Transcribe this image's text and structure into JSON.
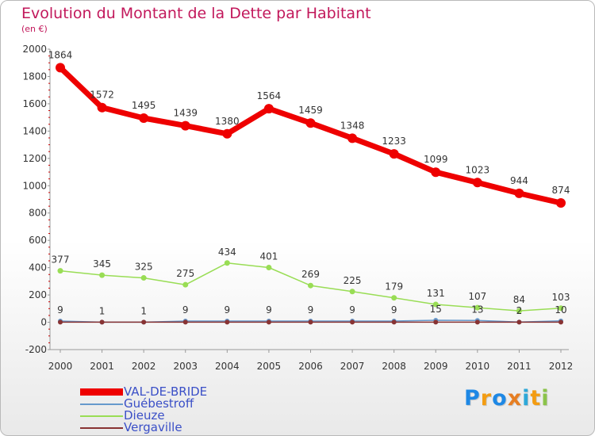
{
  "header": {
    "title": "Evolution du Montant de la Dette par Habitant",
    "subtitle": "(en €)"
  },
  "chart_data": {
    "type": "line",
    "title": "Evolution du Montant de la Dette par Habitant",
    "subtitle": "(en €)",
    "xlabel": "",
    "ylabel": "",
    "x": [
      "2000",
      "2001",
      "2002",
      "2003",
      "2004",
      "2005",
      "2006",
      "2007",
      "2008",
      "2009",
      "2010",
      "2011",
      "2012"
    ],
    "ylim": [
      -200,
      2000
    ],
    "yticks": [
      -200,
      0,
      200,
      400,
      600,
      800,
      1000,
      1200,
      1400,
      1600,
      1800,
      2000
    ],
    "grid": false,
    "legend_position": "bottom-left",
    "series": [
      {
        "name": "VAL-DE-BRIDE",
        "color": "#ee0000",
        "values": [
          1864,
          1572,
          1495,
          1439,
          1380,
          1564,
          1459,
          1348,
          1233,
          1099,
          1023,
          944,
          874
        ],
        "labels": [
          "1864",
          "1572",
          "1495",
          "1439",
          "1380",
          "1564",
          "1459",
          "1348",
          "1233",
          "1099",
          "1023",
          "944",
          "874"
        ]
      },
      {
        "name": "Guébestroff",
        "color": "#6699cc",
        "values": [
          9,
          1,
          1,
          9,
          9,
          9,
          9,
          9,
          9,
          15,
          13,
          2,
          10
        ],
        "labels": [
          "9",
          "1",
          "1",
          "9",
          "9",
          "9",
          "9",
          "9",
          "9",
          "15",
          "13",
          "2",
          "10"
        ]
      },
      {
        "name": "Dieuze",
        "color": "#99dd55",
        "values": [
          377,
          345,
          325,
          275,
          434,
          401,
          269,
          225,
          179,
          131,
          107,
          84,
          103
        ],
        "labels": [
          "377",
          "345",
          "325",
          "275",
          "434",
          "401",
          "269",
          "225",
          "179",
          "131",
          "107",
          "84",
          "103"
        ]
      },
      {
        "name": "Vergaville",
        "color": "#883333",
        "values": [
          1,
          1,
          1,
          1,
          1,
          1,
          1,
          1,
          1,
          1,
          1,
          1,
          1
        ],
        "labels": [
          "",
          "",
          "",
          "",
          "",
          "",
          "",
          "",
          "",
          "",
          "",
          "",
          ""
        ]
      }
    ]
  },
  "logo": {
    "letters": [
      "P",
      "r",
      "o",
      "x",
      "i",
      "t",
      "i"
    ],
    "colors": [
      "#1e88e5",
      "#f39c12",
      "#1e88e5",
      "#e67e22",
      "#2ea8d8",
      "#f39c12",
      "#8bc34a"
    ]
  }
}
